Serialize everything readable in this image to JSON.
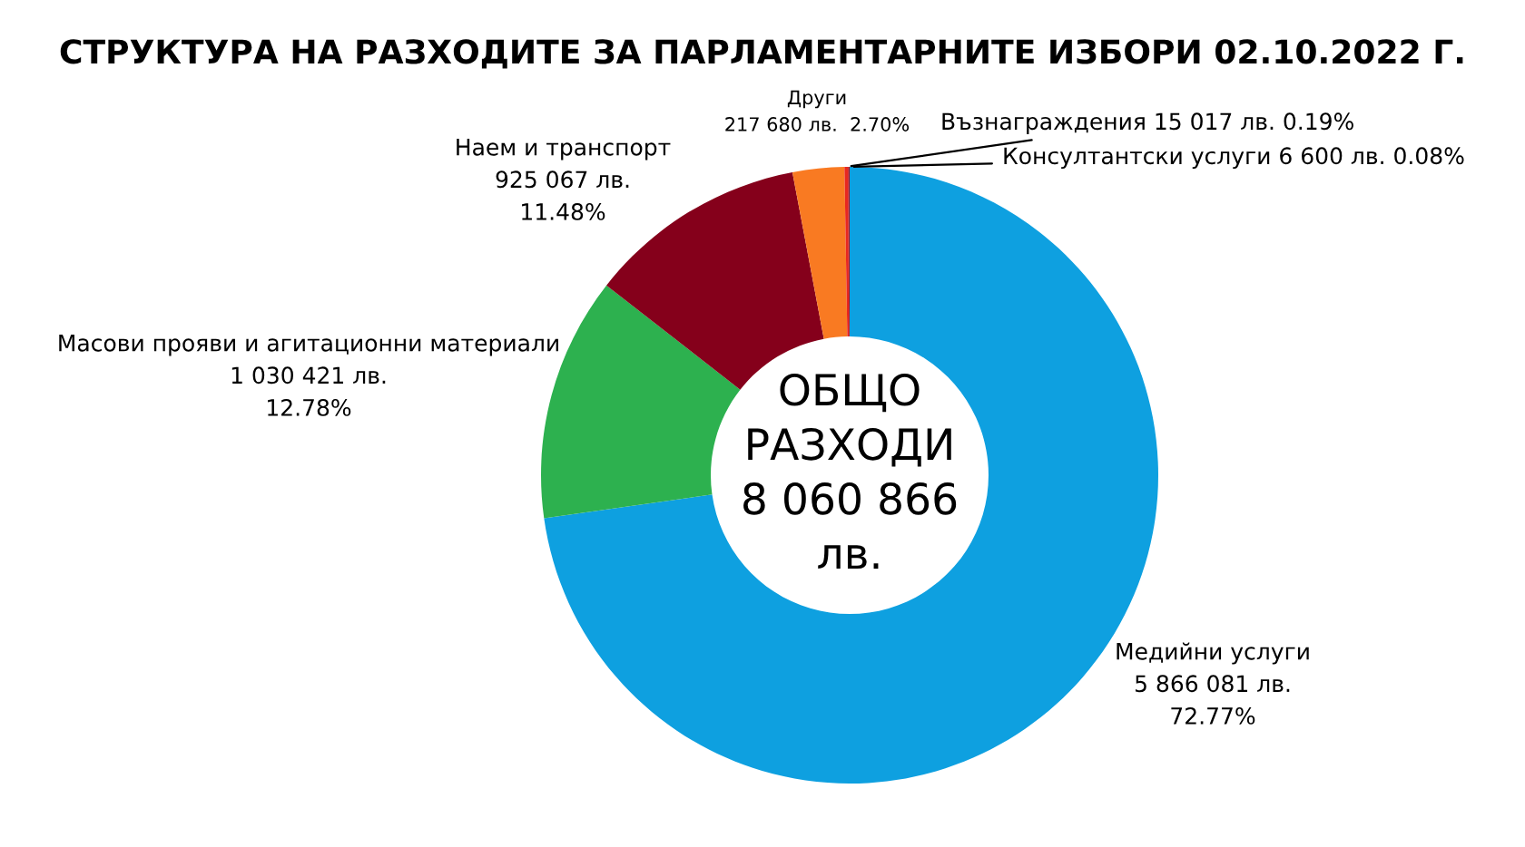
{
  "chart_data": {
    "type": "donut",
    "title": "СТРУКТУРА НА РАЗХОДИТЕ ЗА ПАРЛАМЕНТАРНИТЕ ИЗБОРИ 02.10.2022 Г.",
    "categories": [
      "Медийни услуги",
      "Масови прояви и агитационни материали",
      "Наем и транспорт",
      "Други",
      "Възнаграждения",
      "Консултантски услуги"
    ],
    "values": [
      5866081,
      1030421,
      925067,
      217680,
      15017,
      6600
    ],
    "colors": [
      "#0ea0e0",
      "#2db14f",
      "#85001b",
      "#f97a22",
      "#e8271f",
      "#b0101a"
    ],
    "value_labels": [
      "5 866 081 лв.\n72.77%",
      "1 030 421 лв.\n12.78%",
      "925 067 лв.\n11.48%",
      "217 680 лв.  2.70%",
      "15 017 лв. 0.19%",
      "6 600 лв. 0.08%"
    ],
    "annotations": [
      "ОБЩО\nРАЗХОДИ\n8 060 866\nлв."
    ]
  }
}
